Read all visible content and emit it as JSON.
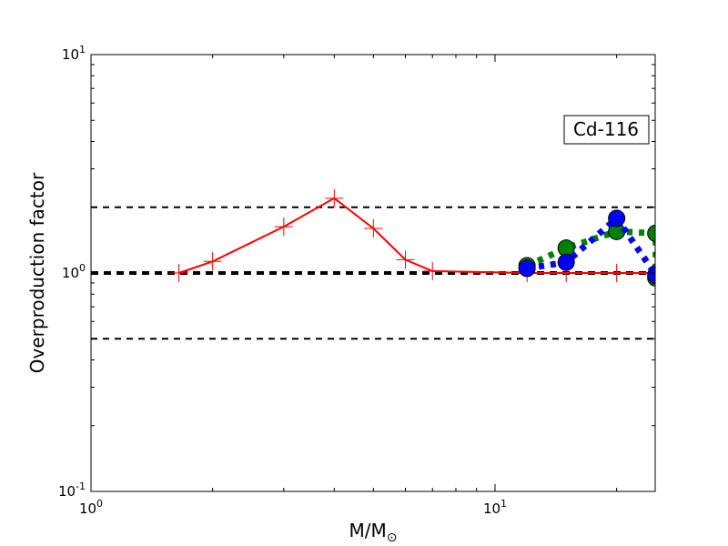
{
  "chart_data": {
    "type": "line",
    "xscale": "log",
    "yscale": "log",
    "xlim": [
      1,
      24
    ],
    "ylim": [
      0.1,
      10
    ],
    "xlabel": "M/M⊙",
    "ylabel": "Overproduction factor",
    "x_ticks": [
      {
        "value": 1,
        "base": "10",
        "exp": "0"
      },
      {
        "value": 10,
        "base": "10",
        "exp": "1"
      }
    ],
    "y_ticks": [
      {
        "value": 0.1,
        "base": "10",
        "exp": "-1"
      },
      {
        "value": 1,
        "base": "10",
        "exp": "0"
      },
      {
        "value": 10,
        "base": "10",
        "exp": "1"
      }
    ],
    "annotation": "Cd-116",
    "reference_lines": [
      0.5,
      1.0,
      2.0
    ],
    "series": [
      {
        "style": "solid",
        "marker": "plus",
        "color": "#ff0000",
        "x": [
          1.65,
          2.0,
          3.0,
          4.0,
          5.0,
          6.0,
          7.0,
          12.0,
          15.0,
          20.0,
          25.0
        ],
        "y": [
          1.0,
          1.13,
          1.63,
          2.2,
          1.6,
          1.15,
          1.02,
          1.0,
          1.0,
          1.0,
          1.0
        ]
      },
      {
        "style": "dotted",
        "marker": "circle",
        "color": "#008000",
        "x": [
          12.0,
          15.0,
          20.0,
          25.0,
          25.0
        ],
        "y": [
          1.08,
          1.3,
          1.55,
          1.52,
          0.95
        ]
      },
      {
        "style": "dotted",
        "marker": "circle",
        "color": "#0000ff",
        "x": [
          12.0,
          15.0,
          20.0,
          25.0
        ],
        "y": [
          1.05,
          1.12,
          1.78,
          0.98
        ]
      }
    ]
  }
}
